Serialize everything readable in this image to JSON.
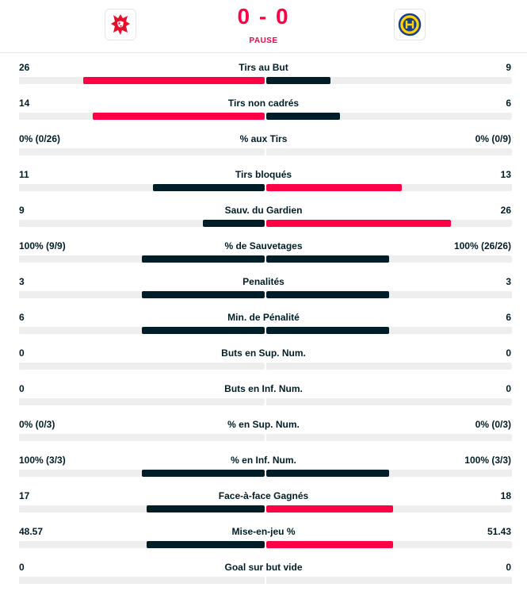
{
  "header": {
    "score": "0 - 0",
    "status": "PAUSE",
    "home_logo": "lion-crest-icon",
    "away_logo": "hcd-crest-icon"
  },
  "colors": {
    "winner": "#ff0046",
    "other": "#001e28",
    "track": "#eeeeee"
  },
  "stats": [
    {
      "label": "Tirs au But",
      "home": "26",
      "away": "9",
      "home_share": 0.74,
      "away_share": 0.26,
      "leader": "home"
    },
    {
      "label": "Tirs non cadrés",
      "home": "14",
      "away": "6",
      "home_share": 0.7,
      "away_share": 0.3,
      "leader": "home"
    },
    {
      "label": "% aux Tirs",
      "home": "0% (0/26)",
      "away": "0% (0/9)",
      "home_share": 0,
      "away_share": 0,
      "leader": "none"
    },
    {
      "label": "Tirs bloqués",
      "home": "11",
      "away": "13",
      "home_share": 0.455,
      "away_share": 0.55,
      "leader": "away"
    },
    {
      "label": "Sauv. du Gardien",
      "home": "9",
      "away": "26",
      "home_share": 0.25,
      "away_share": 0.75,
      "leader": "away"
    },
    {
      "label": "% de Sauvetages",
      "home": "100% (9/9)",
      "away": "100% (26/26)",
      "home_share": 0.5,
      "away_share": 0.5,
      "leader": "none"
    },
    {
      "label": "Penalités",
      "home": "3",
      "away": "3",
      "home_share": 0.5,
      "away_share": 0.5,
      "leader": "none"
    },
    {
      "label": "Min. de Pénalité",
      "home": "6",
      "away": "6",
      "home_share": 0.5,
      "away_share": 0.5,
      "leader": "none"
    },
    {
      "label": "Buts en Sup. Num.",
      "home": "0",
      "away": "0",
      "home_share": 0,
      "away_share": 0,
      "leader": "none"
    },
    {
      "label": "Buts en Inf. Num.",
      "home": "0",
      "away": "0",
      "home_share": 0,
      "away_share": 0,
      "leader": "none"
    },
    {
      "label": "% en Sup. Num.",
      "home": "0% (0/3)",
      "away": "0% (0/3)",
      "home_share": 0,
      "away_share": 0,
      "leader": "none"
    },
    {
      "label": "% en Inf. Num.",
      "home": "100% (3/3)",
      "away": "100% (3/3)",
      "home_share": 0.5,
      "away_share": 0.5,
      "leader": "none"
    },
    {
      "label": "Face-à-face Gagnés",
      "home": "17",
      "away": "18",
      "home_share": 0.48,
      "away_share": 0.515,
      "leader": "away"
    },
    {
      "label": "Mise-en-jeu %",
      "home": "48.57",
      "away": "51.43",
      "home_share": 0.48,
      "away_share": 0.515,
      "leader": "away"
    },
    {
      "label": "Goal sur but vide",
      "home": "0",
      "away": "0",
      "home_share": 0,
      "away_share": 0,
      "leader": "none"
    }
  ]
}
